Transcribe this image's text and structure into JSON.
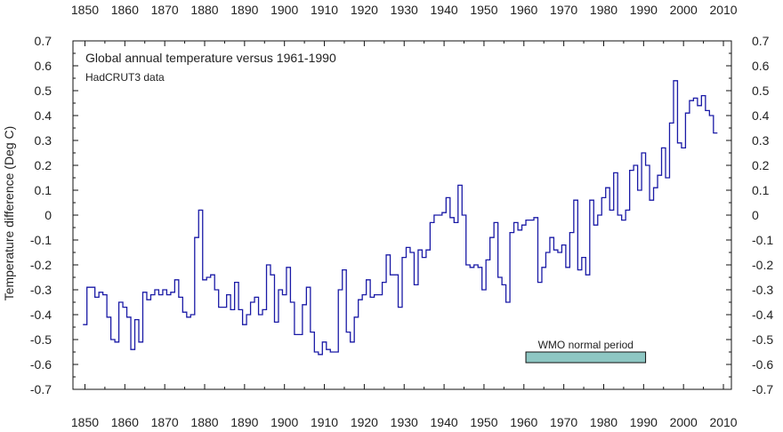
{
  "chart_data": {
    "type": "line",
    "title": "Global annual temperature versus 1961-1990",
    "subtitle": "HadCRUT3 data",
    "ylabel": "Temperature difference (Deg C)",
    "xlabel": "",
    "xlim": [
      1847,
      2012
    ],
    "ylim": [
      -0.7,
      0.7
    ],
    "x_ticks": [
      1850,
      1860,
      1870,
      1880,
      1890,
      1900,
      1910,
      1920,
      1930,
      1940,
      1950,
      1960,
      1970,
      1980,
      1990,
      2000,
      2010
    ],
    "x_tick_labels": [
      "1850",
      "1860",
      "1870",
      "1880",
      "1890",
      "1900",
      "1910",
      "1920",
      "1930",
      "1940",
      "1950",
      "1960",
      "1970",
      "1980",
      "1990",
      "2000",
      "2010"
    ],
    "y_ticks": [
      -0.7,
      -0.6,
      -0.5,
      -0.4,
      -0.3,
      -0.2,
      -0.1,
      0,
      0.1,
      0.2,
      0.3,
      0.4,
      0.5,
      0.6,
      0.7
    ],
    "y_tick_labels": [
      "-0.7",
      "-0.6",
      "-0.5",
      "-0.4",
      "-0.3",
      "-0.2",
      "-0.1",
      "0",
      "0.1",
      "0.2",
      "0.3",
      "0.4",
      "0.5",
      "0.6",
      "0.7"
    ],
    "grid": false,
    "step": true,
    "series_color": "#1a1aa6",
    "series": [
      {
        "x": [
          1850,
          1851,
          1852,
          1853,
          1854,
          1855,
          1856,
          1857,
          1858,
          1859,
          1860,
          1861,
          1862,
          1863,
          1864,
          1865,
          1866,
          1867,
          1868,
          1869,
          1870,
          1871,
          1872,
          1873,
          1874,
          1875,
          1876,
          1877,
          1878,
          1879,
          1880,
          1881,
          1882,
          1883,
          1884,
          1885,
          1886,
          1887,
          1888,
          1889,
          1890,
          1891,
          1892,
          1893,
          1894,
          1895,
          1896,
          1897,
          1898,
          1899,
          1900,
          1901,
          1902,
          1903,
          1904,
          1905,
          1906,
          1907,
          1908,
          1909,
          1910,
          1911,
          1912,
          1913,
          1914,
          1915,
          1916,
          1917,
          1918,
          1919,
          1920,
          1921,
          1922,
          1923,
          1924,
          1925,
          1926,
          1927,
          1928,
          1929,
          1930,
          1931,
          1932,
          1933,
          1934,
          1935,
          1936,
          1937,
          1938,
          1939,
          1940,
          1941,
          1942,
          1943,
          1944,
          1945,
          1946,
          1947,
          1948,
          1949,
          1950,
          1951,
          1952,
          1953,
          1954,
          1955,
          1956,
          1957,
          1958,
          1959,
          1960,
          1961,
          1962,
          1963,
          1964,
          1965,
          1966,
          1967,
          1968,
          1969,
          1970,
          1971,
          1972,
          1973,
          1974,
          1975,
          1976,
          1977,
          1978,
          1979,
          1980,
          1981,
          1982,
          1983,
          1984,
          1985,
          1986,
          1987,
          1988,
          1989,
          1990,
          1991,
          1992,
          1993,
          1994,
          1995,
          1996,
          1997,
          1998,
          1999,
          2000,
          2001,
          2002,
          2003,
          2004,
          2005,
          2006,
          2007,
          2008
        ],
        "values": [
          -0.44,
          -0.29,
          -0.29,
          -0.33,
          -0.31,
          -0.32,
          -0.41,
          -0.5,
          -0.51,
          -0.35,
          -0.37,
          -0.41,
          -0.54,
          -0.42,
          -0.51,
          -0.31,
          -0.34,
          -0.32,
          -0.3,
          -0.32,
          -0.3,
          -0.32,
          -0.31,
          -0.26,
          -0.33,
          -0.39,
          -0.41,
          -0.4,
          -0.09,
          0.02,
          -0.26,
          -0.25,
          -0.24,
          -0.3,
          -0.37,
          -0.37,
          -0.32,
          -0.38,
          -0.27,
          -0.38,
          -0.44,
          -0.4,
          -0.35,
          -0.33,
          -0.4,
          -0.38,
          -0.2,
          -0.24,
          -0.43,
          -0.3,
          -0.32,
          -0.21,
          -0.35,
          -0.48,
          -0.48,
          -0.36,
          -0.29,
          -0.47,
          -0.55,
          -0.56,
          -0.51,
          -0.54,
          -0.55,
          -0.55,
          -0.3,
          -0.22,
          -0.47,
          -0.51,
          -0.41,
          -0.34,
          -0.32,
          -0.26,
          -0.33,
          -0.32,
          -0.32,
          -0.27,
          -0.16,
          -0.24,
          -0.24,
          -0.37,
          -0.17,
          -0.13,
          -0.15,
          -0.28,
          -0.14,
          -0.17,
          -0.14,
          -0.03,
          -0.0,
          0.0,
          0.01,
          0.07,
          -0.01,
          -0.03,
          0.12,
          -0.0,
          -0.2,
          -0.21,
          -0.2,
          -0.21,
          -0.3,
          -0.18,
          -0.09,
          -0.03,
          -0.25,
          -0.28,
          -0.35,
          -0.07,
          -0.03,
          -0.06,
          -0.04,
          -0.02,
          -0.02,
          -0.01,
          -0.27,
          -0.21,
          -0.15,
          -0.09,
          -0.14,
          -0.15,
          -0.12,
          -0.21,
          -0.07,
          0.06,
          -0.22,
          -0.17,
          -0.24,
          0.06,
          -0.04,
          0.0,
          0.07,
          0.11,
          0.02,
          0.17,
          0.0,
          -0.02,
          0.02,
          0.18,
          0.2,
          0.1,
          0.25,
          0.2,
          0.06,
          0.11,
          0.16,
          0.27,
          0.15,
          0.37,
          0.54,
          0.29,
          0.27,
          0.41,
          0.46,
          0.47,
          0.44,
          0.48,
          0.42,
          0.4,
          0.33
        ]
      }
    ],
    "annotations": [
      {
        "text": "WMO normal period",
        "x_range": [
          1961,
          1990
        ],
        "color": "#8ec7c3"
      }
    ]
  }
}
